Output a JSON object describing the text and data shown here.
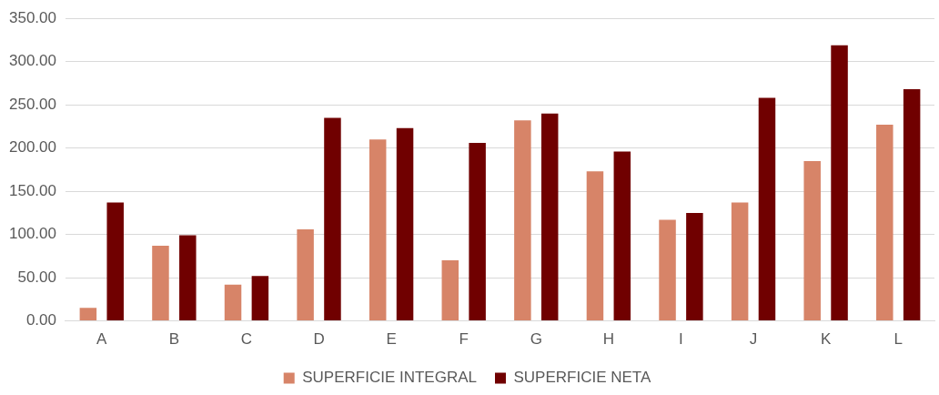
{
  "chart_data": {
    "type": "bar",
    "categories": [
      "A",
      "B",
      "C",
      "D",
      "E",
      "F",
      "G",
      "H",
      "I",
      "J",
      "K",
      "L"
    ],
    "series": [
      {
        "name": "SUPERFICIE INTEGRAL",
        "color": "#d78468",
        "values": [
          15,
          87,
          42,
          106,
          210,
          70,
          232,
          173,
          117,
          137,
          185,
          227
        ]
      },
      {
        "name": "SUPERFICIE NETA",
        "color": "#700000",
        "values": [
          137,
          99,
          52,
          235,
          223,
          206,
          240,
          196,
          125,
          258,
          319,
          268
        ]
      }
    ],
    "ylim": [
      0,
      350
    ],
    "yticks": [
      {
        "value": 0,
        "label": "0.00"
      },
      {
        "value": 50,
        "label": "50.00"
      },
      {
        "value": 100,
        "label": "100.00"
      },
      {
        "value": 150,
        "label": "150.00"
      },
      {
        "value": 200,
        "label": "200.00"
      },
      {
        "value": 250,
        "label": "250.00"
      },
      {
        "value": 300,
        "label": "300.00"
      },
      {
        "value": 350,
        "label": "350.00"
      }
    ],
    "grid": "y",
    "legend": "bottom"
  }
}
